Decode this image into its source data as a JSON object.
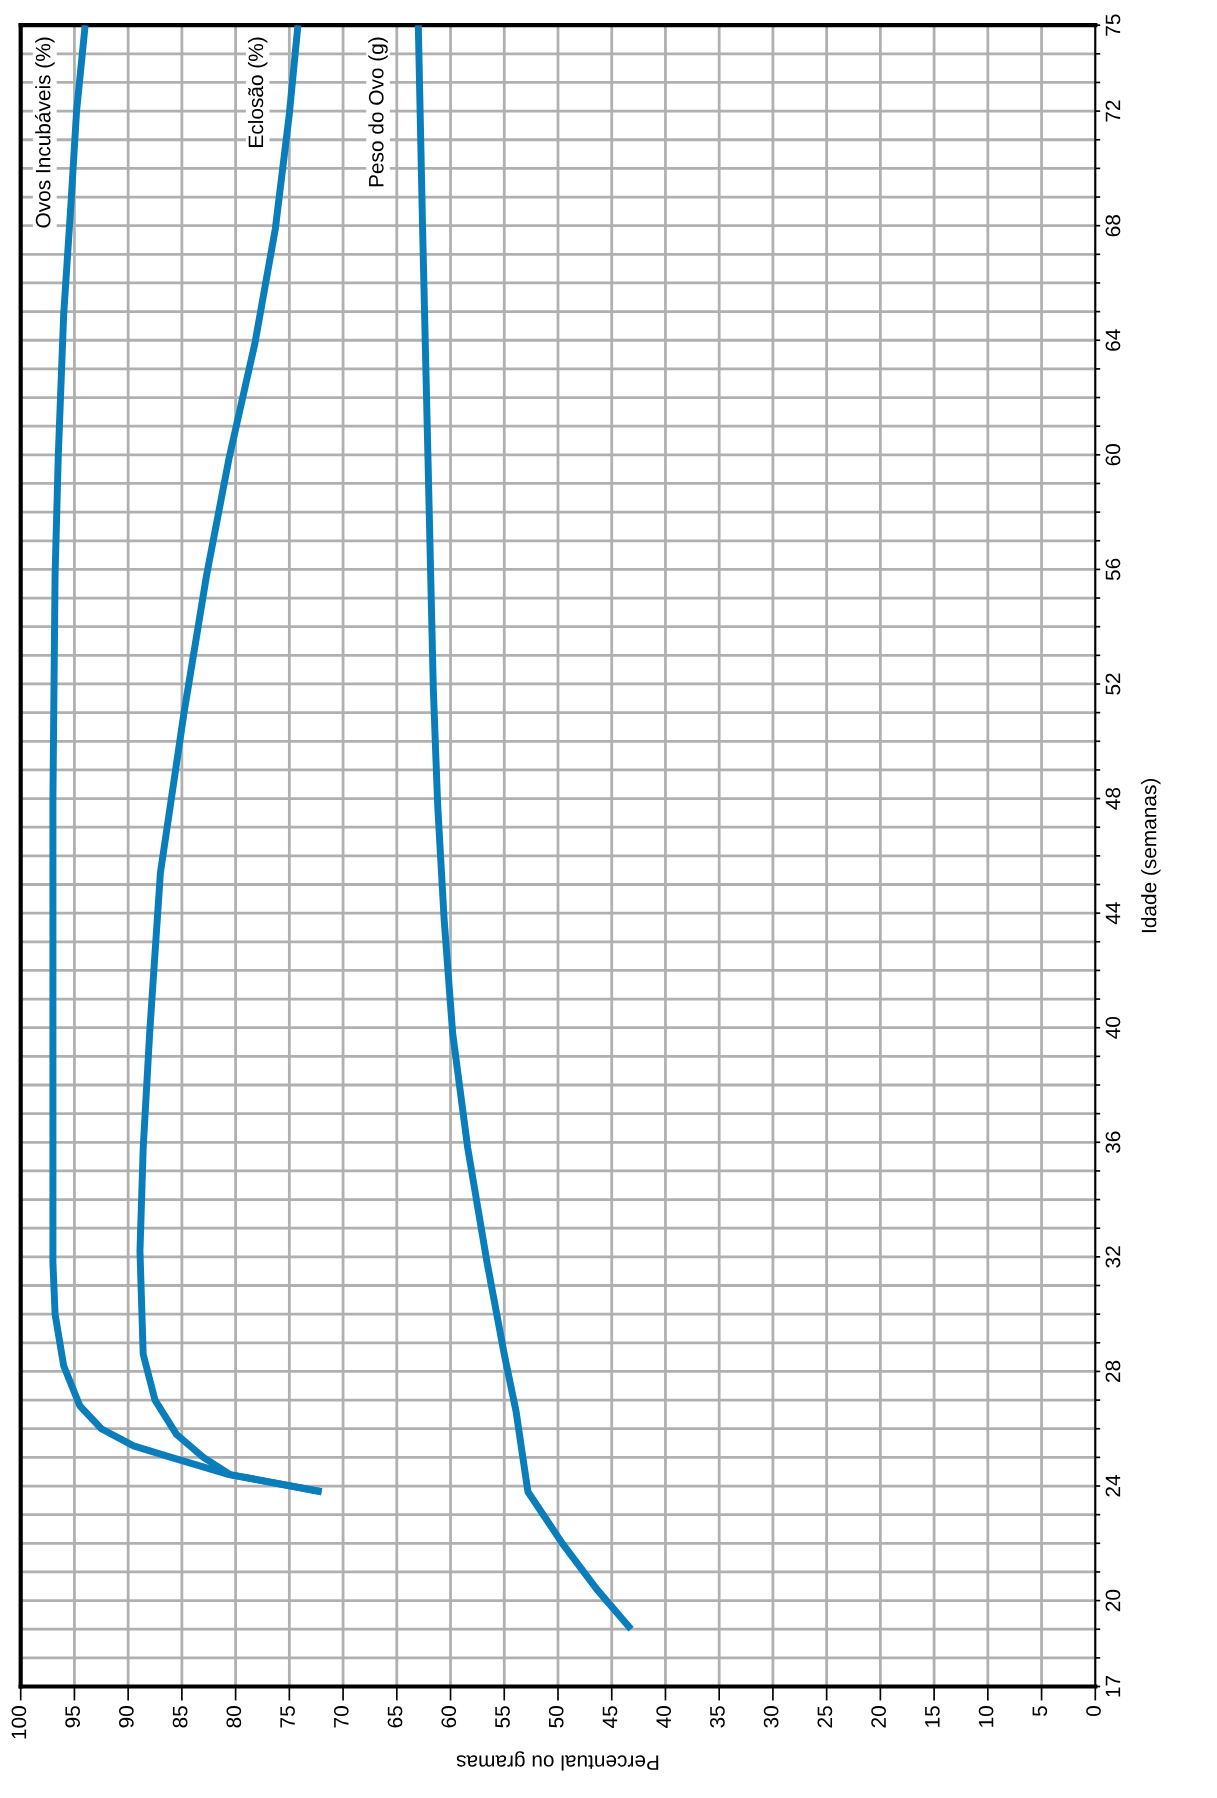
{
  "chart_data": {
    "type": "line",
    "xlabel": "Percentual ou gramas",
    "ylabel": "Idade (semanas)",
    "xlim": [
      100,
      0
    ],
    "ylim": [
      17,
      75
    ],
    "yticks": [
      17,
      {
        "value": 18,
        "label": null
      },
      {
        "value": 19,
        "label": null
      },
      20,
      {
        "value": 21,
        "label": null
      },
      {
        "value": 22,
        "label": null
      },
      {
        "value": 23,
        "label": null
      },
      24,
      {
        "value": 25,
        "label": null
      },
      {
        "value": 26,
        "label": null
      },
      {
        "value": 27,
        "label": null
      },
      28,
      {
        "value": 29,
        "label": null
      },
      {
        "value": 30,
        "label": null
      },
      {
        "value": 31,
        "label": null
      },
      32,
      {
        "value": 33,
        "label": null
      },
      {
        "value": 34,
        "label": null
      },
      {
        "value": 35,
        "label": null
      },
      36,
      {
        "value": 37,
        "label": null
      },
      {
        "value": 38,
        "label": null
      },
      {
        "value": 39,
        "label": null
      },
      40,
      {
        "value": 41,
        "label": null
      },
      {
        "value": 42,
        "label": null
      },
      {
        "value": 43,
        "label": null
      },
      44,
      {
        "value": 45,
        "label": null
      },
      {
        "value": 46,
        "label": null
      },
      {
        "value": 47,
        "label": null
      },
      48,
      {
        "value": 49,
        "label": null
      },
      {
        "value": 50,
        "label": null
      },
      {
        "value": 51,
        "label": null
      },
      52,
      {
        "value": 53,
        "label": null
      },
      {
        "value": 54,
        "label": null
      },
      {
        "value": 55,
        "label": null
      },
      56,
      {
        "value": 57,
        "label": null
      },
      {
        "value": 58,
        "label": null
      },
      {
        "value": 59,
        "label": null
      },
      60,
      {
        "value": 61,
        "label": null
      },
      {
        "value": 62,
        "label": null
      },
      {
        "value": 63,
        "label": null
      },
      64,
      {
        "value": 65,
        "label": null
      },
      {
        "value": 66,
        "label": null
      },
      {
        "value": 67,
        "label": null
      },
      68,
      {
        "value": 69,
        "label": null
      },
      {
        "value": 70,
        "label": null
      },
      {
        "value": 71,
        "label": null
      },
      72,
      {
        "value": 73,
        "label": null
      },
      {
        "value": 74,
        "label": null
      },
      75
    ],
    "xticks": [
      100,
      95,
      90,
      85,
      80,
      75,
      70,
      65,
      60,
      55,
      50,
      45,
      40,
      35,
      30,
      25,
      20,
      15,
      10,
      5,
      0
    ],
    "grid": true,
    "legend": false,
    "marker": "none",
    "line_style": "solid",
    "series": [
      {
        "name": "Ovos Incubáveis (%)",
        "color": "#0a7dbb",
        "x": [
          72,
          80.6,
          86,
          89.5,
          92.5,
          94.5,
          96,
          96.8,
          97,
          97,
          97,
          96.8,
          96.5,
          96,
          95.3,
          94.8,
          94
        ],
        "values": [
          23.8,
          24.4,
          25.0,
          25.4,
          26.0,
          26.8,
          28.2,
          30.0,
          31.8,
          40,
          48,
          55.8,
          60,
          64.9,
          68.9,
          72,
          75
        ]
      },
      {
        "name": "Eclosão (%)",
        "color": "#0a7dbb",
        "x": [
          72,
          80.5,
          83,
          85.5,
          87.5,
          88.6,
          88.9,
          88.6,
          88,
          87,
          84.8,
          82.7,
          80.6,
          78.2,
          76.3,
          75,
          74.2
        ],
        "values": [
          23.8,
          24.4,
          25.0,
          25.8,
          27.0,
          28.6,
          32.2,
          35.8,
          39.8,
          45.4,
          51.0,
          55.8,
          59.9,
          63.9,
          67.9,
          71.9,
          75
        ]
      },
      {
        "name": "Peso do Ovo (g)",
        "color": "#0a7dbb",
        "x": [
          43.2,
          46.4,
          49.6,
          52.8,
          53.9,
          55,
          56.6,
          58.4,
          59.8,
          60.6,
          61.2,
          61.6,
          62.1,
          62.6,
          63
        ],
        "values": [
          19,
          20.4,
          22.0,
          23.8,
          26.6,
          28.6,
          31.8,
          35.8,
          39.8,
          43.8,
          47.8,
          51.8,
          59.9,
          67.9,
          75
        ]
      }
    ]
  }
}
